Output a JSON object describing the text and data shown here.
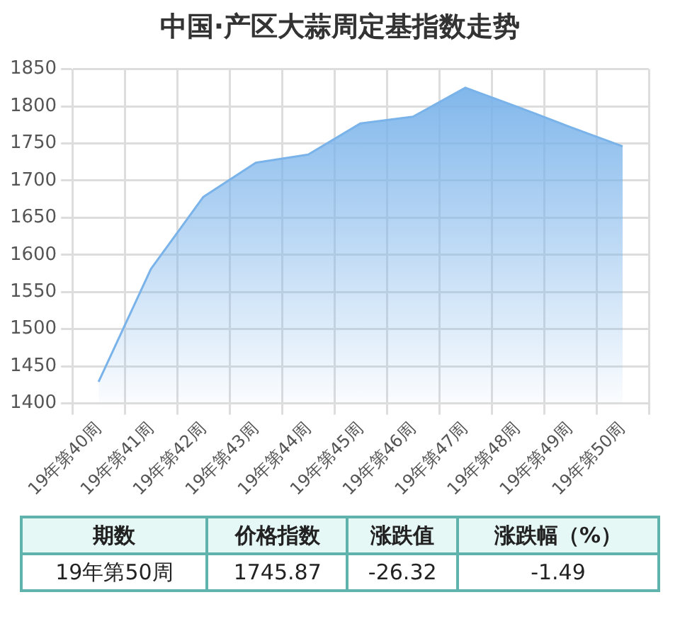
{
  "chart_data": {
    "type": "area",
    "title": "中国·产区大蒜周定基指数走势",
    "categories": [
      "19年第40周",
      "19年第41周",
      "19年第42周",
      "19年第43周",
      "19年第44周",
      "19年第45周",
      "19年第46周",
      "19年第47周",
      "19年第48周",
      "19年第49周",
      "19年第50周"
    ],
    "series": [
      {
        "color": "#7ab3ea",
        "values": [
          1429,
          1581,
          1678,
          1724,
          1735,
          1777,
          1786,
          1825,
          1799,
          1772,
          1746
        ]
      }
    ],
    "ylim": [
      1400,
      1850
    ],
    "yticks": [
      1400,
      1450,
      1500,
      1550,
      1600,
      1650,
      1700,
      1750,
      1800,
      1850
    ],
    "grid": true,
    "legend": false,
    "marker": "none",
    "annotations": [
      "期数",
      "价格指数",
      "涨跌值",
      "涨跌幅（%）",
      "19年第50周",
      "1745.87",
      "-26.32",
      "-1.49"
    ]
  }
}
